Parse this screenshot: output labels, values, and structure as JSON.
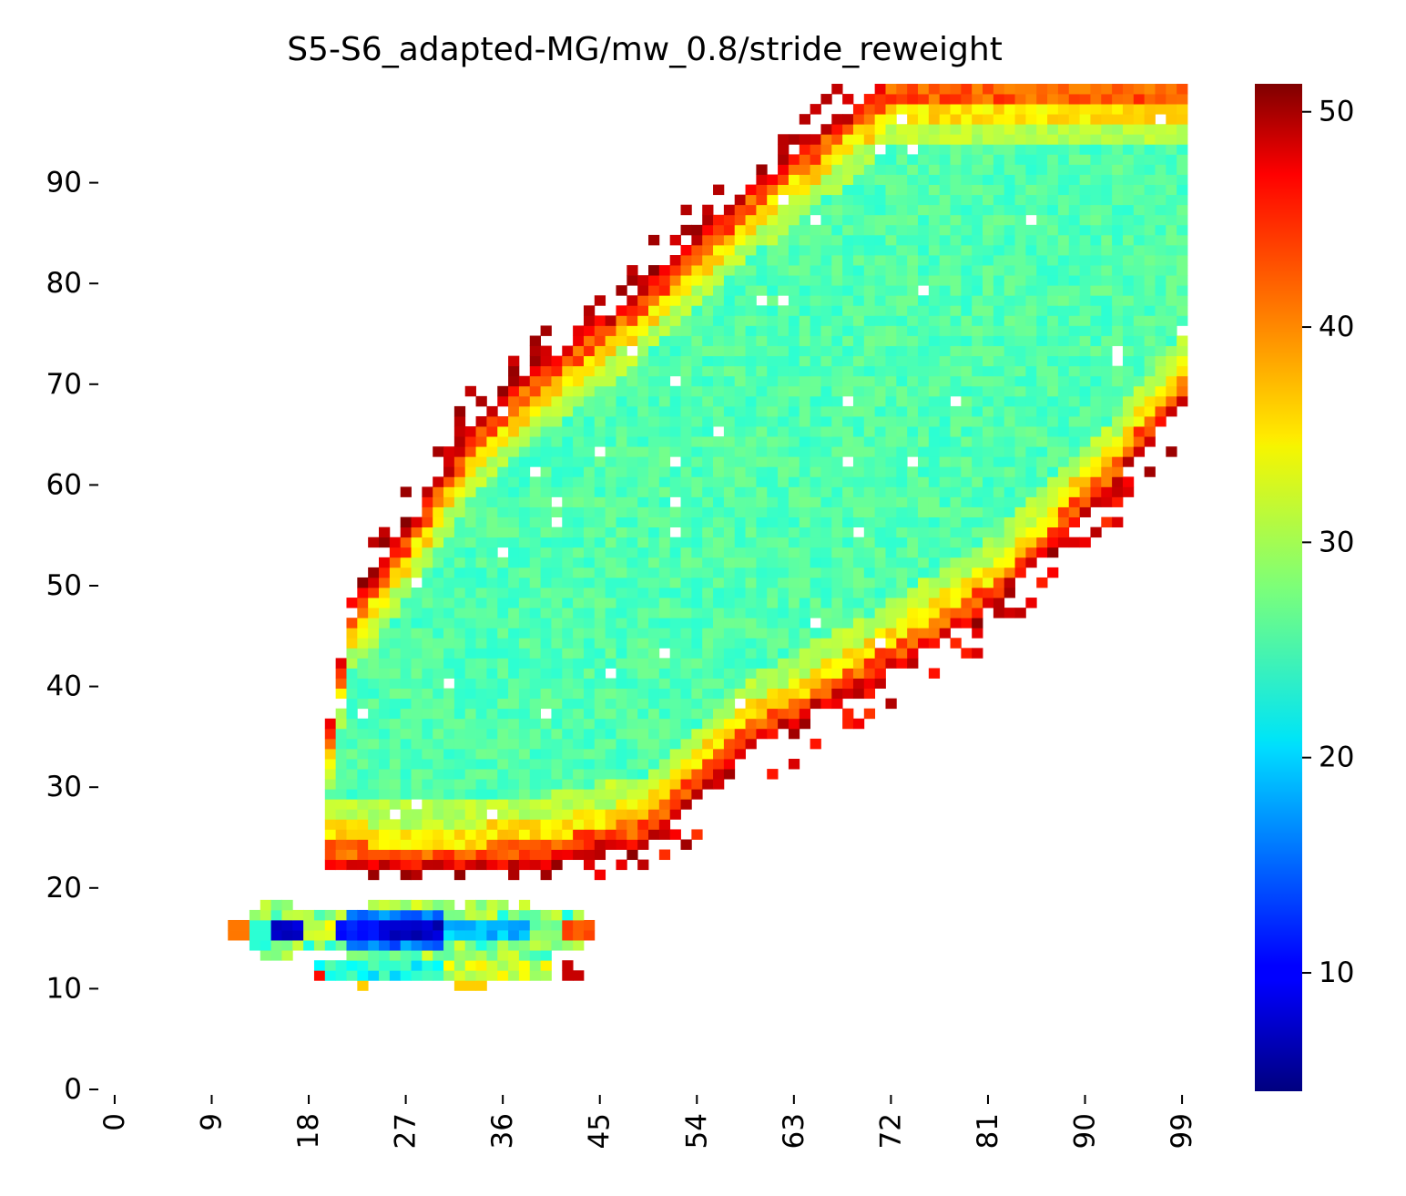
{
  "chart_data": {
    "type": "heatmap",
    "title": "S5-S6_adapted-MG/mw_0.8/stride_reweight",
    "xlabel": "",
    "ylabel": "",
    "grid_size": 100,
    "x_ticks": [
      "0",
      "9",
      "18",
      "27",
      "36",
      "45",
      "54",
      "63",
      "72",
      "81",
      "90",
      "99"
    ],
    "y_ticks": [
      "0",
      "10",
      "20",
      "30",
      "40",
      "50",
      "60",
      "70",
      "80",
      "90"
    ],
    "colorbar": {
      "colormap": "jet",
      "vmin": 4.5,
      "vmax": 51.3,
      "ticks": [
        "10",
        "20",
        "30",
        "40",
        "50"
      ]
    },
    "regions": {
      "main_band": {
        "description_values": "diagonal band from (x 20-45, y 20-35) to (x 75-100, y 70-100)",
        "core_value": 24,
        "edge_value": 45
      },
      "lower_strip": {
        "x_range": [
          11,
          45
        ],
        "y_range": [
          10,
          18
        ],
        "min_value": 5,
        "max_value": 42
      }
    }
  }
}
